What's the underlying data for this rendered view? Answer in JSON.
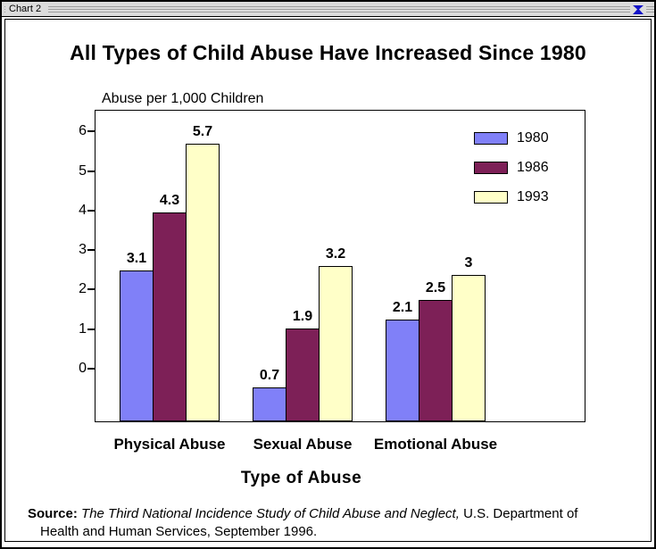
{
  "window": {
    "title": "Chart 2"
  },
  "chart_data": {
    "type": "bar",
    "title": "All Types of Child Abuse Have Increased Since 1980",
    "value_axis_label": "Abuse per 1,000 Children",
    "xlabel": "Type of Abuse",
    "categories": [
      "Physical Abuse",
      "Sexual Abuse",
      "Emotional Abuse"
    ],
    "series": [
      {
        "name": "1980",
        "color": "#8080f8",
        "values": [
          3.1,
          0.7,
          2.1
        ],
        "value_labels": [
          "3.1",
          "0.7",
          "2.1"
        ]
      },
      {
        "name": "1986",
        "color": "#7d2057",
        "values": [
          4.3,
          1.9,
          2.5
        ],
        "value_labels": [
          "4.3",
          "1.9",
          "2.5"
        ]
      },
      {
        "name": "1993",
        "color": "#ffffc8",
        "values": [
          5.7,
          3.2,
          3.0
        ],
        "value_labels": [
          "5.7",
          "3.2",
          "3"
        ]
      }
    ],
    "y_ticks": [
      0,
      1,
      2,
      3,
      4,
      5,
      6
    ],
    "axis_range": [
      0,
      6
    ],
    "grid": false,
    "legend_position": "upper-right"
  },
  "source": {
    "label": "Source:",
    "citation_italic": "The Third National Incidence Study of Child Abuse and Neglect,",
    "citation_rest": "U.S. Department of",
    "line2": "Health and Human Services, September 1996."
  }
}
